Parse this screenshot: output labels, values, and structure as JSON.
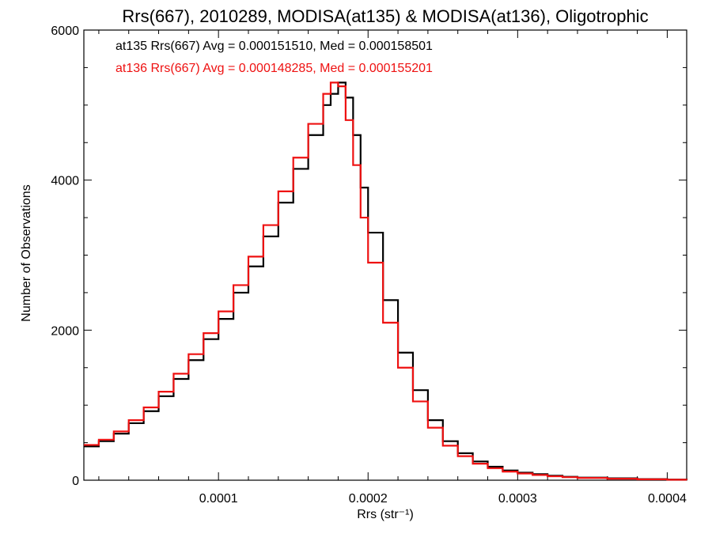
{
  "chart_data": {
    "type": "line",
    "title": "Rrs(667), 2010289, MODISA(at135) & MODISA(at136), Oligotrophic",
    "xlabel": "Rrs (str⁻¹)",
    "ylabel": "Number of Observations",
    "xlim": [
      1e-05,
      0.000413
    ],
    "ylim": [
      0,
      6000
    ],
    "x_ticks": [
      0.0001,
      0.0002,
      0.0003,
      0.0004
    ],
    "x_tick_labels": [
      "0.0001",
      "0.0002",
      "0.0003",
      "0.0004"
    ],
    "y_ticks": [
      0,
      2000,
      4000,
      6000
    ],
    "y_tick_labels": [
      "0",
      "2000",
      "4000",
      "6000"
    ],
    "grid": false,
    "legend_position": "top-left",
    "series": [
      {
        "name": "at135 Rrs(667) Avg = 0.000151510, Med = 0.000158501",
        "color": "#000000",
        "x": [
          1e-05,
          2e-05,
          3e-05,
          4e-05,
          5e-05,
          6e-05,
          7e-05,
          8e-05,
          9e-05,
          0.0001,
          0.00011,
          0.00012,
          0.00013,
          0.00014,
          0.00015,
          0.00016,
          0.00017,
          0.000175,
          0.00018,
          0.000185,
          0.00019,
          0.000195,
          0.0002,
          0.00021,
          0.00022,
          0.00023,
          0.00024,
          0.00025,
          0.00026,
          0.00027,
          0.00028,
          0.00029,
          0.0003,
          0.00031,
          0.00032,
          0.00033,
          0.00034,
          0.00036,
          0.00038,
          0.0004,
          0.000413
        ],
        "y": [
          450,
          520,
          620,
          760,
          920,
          1120,
          1350,
          1600,
          1880,
          2150,
          2500,
          2850,
          3250,
          3700,
          4150,
          4600,
          5000,
          5150,
          5300,
          5100,
          4600,
          3900,
          3300,
          2400,
          1700,
          1200,
          800,
          520,
          360,
          250,
          180,
          130,
          100,
          80,
          60,
          45,
          35,
          25,
          15,
          8,
          5
        ]
      },
      {
        "name": "at136 Rrs(667) Avg = 0.000148285, Med = 0.000155201",
        "color": "#ee1111",
        "x": [
          1e-05,
          2e-05,
          3e-05,
          4e-05,
          5e-05,
          6e-05,
          7e-05,
          8e-05,
          9e-05,
          0.0001,
          0.00011,
          0.00012,
          0.00013,
          0.00014,
          0.00015,
          0.00016,
          0.00017,
          0.000175,
          0.00018,
          0.000185,
          0.00019,
          0.000195,
          0.0002,
          0.00021,
          0.00022,
          0.00023,
          0.00024,
          0.00025,
          0.00026,
          0.00027,
          0.00028,
          0.00029,
          0.0003,
          0.00031,
          0.00032,
          0.00033,
          0.00034,
          0.00036,
          0.00038,
          0.0004,
          0.000413
        ],
        "y": [
          470,
          540,
          650,
          800,
          970,
          1180,
          1420,
          1680,
          1960,
          2250,
          2600,
          2980,
          3400,
          3850,
          4300,
          4750,
          5150,
          5300,
          5250,
          4800,
          4200,
          3500,
          2900,
          2100,
          1500,
          1050,
          700,
          460,
          320,
          220,
          160,
          115,
          90,
          70,
          52,
          40,
          30,
          20,
          12,
          7,
          4
        ]
      }
    ]
  }
}
